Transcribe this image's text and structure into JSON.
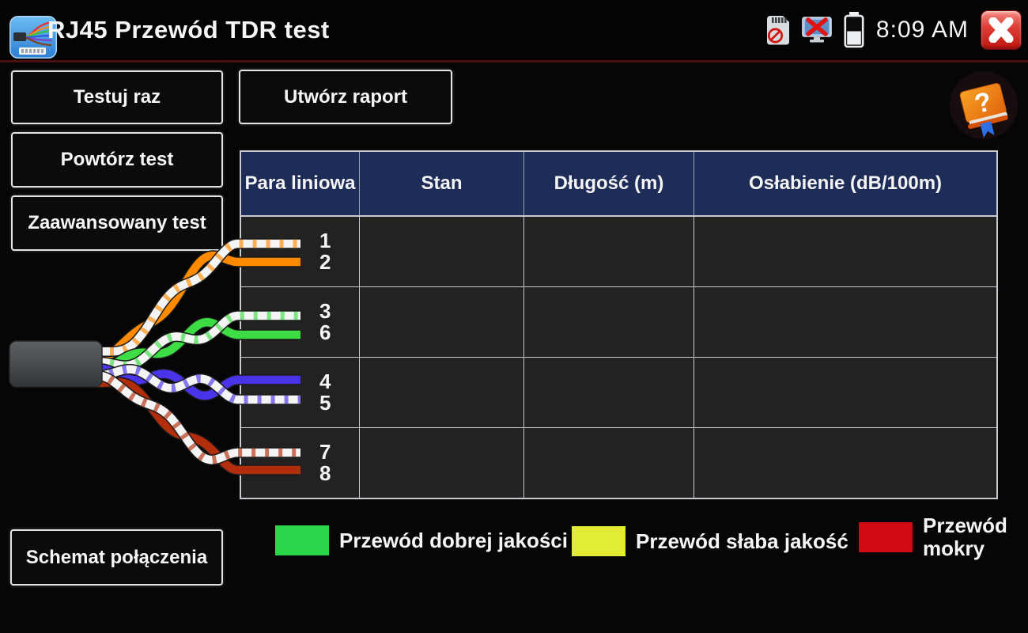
{
  "titlebar": {
    "title": "RJ45 Przewód TDR test",
    "time": "8:09 AM",
    "icons": {
      "app": "rj45-tdr-app-icon",
      "sd": "sd-card-disabled-icon",
      "network": "network-disconnected-icon",
      "battery": "battery-half-icon",
      "close": "close-icon"
    }
  },
  "buttons": {
    "test_once": "Testuj raz",
    "repeat_test": "Powtórz test",
    "advanced_test": "Zaawansowany test",
    "create_report": "Utwórz raport",
    "connection_diagram": "Schemat połączenia"
  },
  "table": {
    "headers": [
      "Para liniowa",
      "Stan",
      "Długość (m)",
      "Osłabienie (dB/100m)"
    ],
    "rows": [
      {
        "pair": [
          "1",
          "2"
        ],
        "stan": "",
        "dlugosc": "",
        "oslabienie": ""
      },
      {
        "pair": [
          "3",
          "6"
        ],
        "stan": "",
        "dlugosc": "",
        "oslabienie": ""
      },
      {
        "pair": [
          "4",
          "5"
        ],
        "stan": "",
        "dlugosc": "",
        "oslabienie": ""
      },
      {
        "pair": [
          "7",
          "8"
        ],
        "stan": "",
        "dlugosc": "",
        "oslabienie": ""
      }
    ]
  },
  "legend": [
    {
      "label": "Przewód dobrej jakości",
      "color": "#2bd64a"
    },
    {
      "label": "Przewód słaba jakość",
      "color": "#e3ec35"
    },
    {
      "label": "Przewód mokry",
      "color": "#cf0a12"
    }
  ],
  "cable_graphic": {
    "jacket_color": "#4a4e51",
    "startX": 122,
    "splitX": 300,
    "endX": 380,
    "twists": 2,
    "wire_width": 10.5,
    "pairs": [
      {
        "name": "orange-pair",
        "color": "#ff8a00",
        "startY": 449,
        "topY": 308,
        "bottomY": 331,
        "striped": "top"
      },
      {
        "name": "green-pair",
        "color": "#3ddc45",
        "startY": 462,
        "topY": 399,
        "bottomY": 423,
        "striped": "top"
      },
      {
        "name": "blue-pair",
        "color": "#4a34ea",
        "startY": 470,
        "topY": 480,
        "bottomY": 505,
        "striped": "bottom"
      },
      {
        "name": "brown-pair",
        "color": "#b12d0b",
        "startY": 479,
        "topY": 572,
        "bottomY": 594,
        "striped": "top"
      }
    ]
  },
  "colors": {
    "header_bg": "#1e2c58",
    "row_bg": "#222222",
    "grid_line": "#c6cad1",
    "titlebar_separator": "#4a1010",
    "close_red": "#c01410"
  }
}
